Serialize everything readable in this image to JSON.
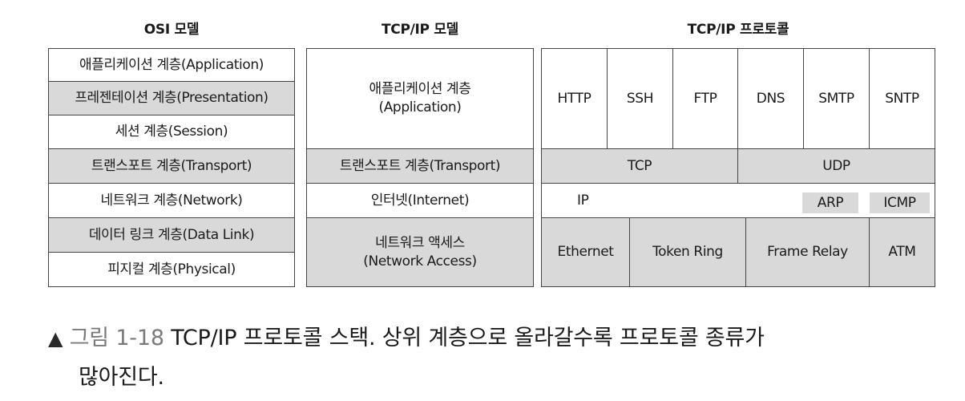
{
  "headers": {
    "osi": "OSI 모델",
    "tcpip_model": "TCP/IP 모델",
    "tcpip_protocol": "TCP/IP 프로토콜"
  },
  "osi_layers": [
    "애플리케이션 계층(Application)",
    "프레젠테이션 계층(Presentation)",
    "세션 계층(Session)",
    "트랜스포트 계층(Transport)",
    "네트워크 계층(Network)",
    "데이터 링크 계층(Data Link)",
    "피지컬 계층(Physical)"
  ],
  "tcpip_layers": [
    "애플리케이션 계층\n(Application)",
    "트랜스포트 계층(Transport)",
    "인터넷(Internet)",
    "네트워크 액세스\n(Network Access)"
  ],
  "protocols": {
    "application": [
      "HTTP",
      "SSH",
      "FTP",
      "DNS",
      "SMTP",
      "SNTP"
    ],
    "transport": [
      "TCP",
      "UDP"
    ],
    "internet": [
      "IP",
      "ARP",
      "ICMP"
    ],
    "network_access": [
      "Ethernet",
      "Token Ring",
      "Frame Relay",
      "ATM"
    ]
  },
  "caption": {
    "marker": "▲",
    "figure": "그림 1-18",
    "text": "TCP/IP 프로토콜 스택. 상위 계층으로 올라갈수록 프로토콜 종류가",
    "text2": "많아진다."
  },
  "colors": {
    "shade": "#d9d9d9",
    "border": "#444444"
  }
}
